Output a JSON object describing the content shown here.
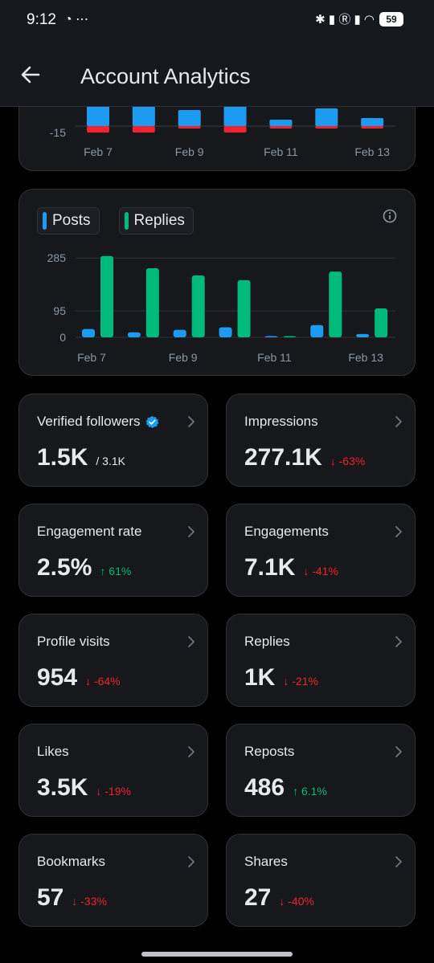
{
  "status_bar": {
    "time": "9:12",
    "left_icons": "◔ ⋯",
    "right_icons": "✱ ▮ Ⓡ ▮ ◠",
    "battery": "59"
  },
  "header": {
    "title": "Account Analytics",
    "back_icon": "arrow-left-icon"
  },
  "colors": {
    "posts": "#1d9bf0",
    "replies": "#00ba7c",
    "negative": "#f4212e",
    "card_bg": "#16181c",
    "border": "#2f3336"
  },
  "chart_data": [
    {
      "type": "bar",
      "description_key": "top-partial",
      "x": [
        "Feb 7",
        "Feb 8",
        "Feb 9",
        "Feb 10",
        "Feb 11",
        "Feb 12",
        "Feb 13"
      ],
      "x_tick_labels": [
        "Feb 7",
        "Feb 9",
        "Feb 11",
        "Feb 13"
      ],
      "y_tick_labels": [
        "-15"
      ],
      "series": [
        {
          "values": [
            30,
            30,
            20,
            30,
            8,
            22,
            10
          ]
        },
        {
          "values": [
            -8,
            -8,
            -3,
            -8,
            -3,
            -3,
            -3
          ]
        }
      ],
      "ylim": [
        -15,
        40
      ]
    },
    {
      "type": "bar",
      "x": [
        "Feb 7",
        "Feb 8",
        "Feb 9",
        "Feb 10",
        "Feb 11",
        "Feb 12",
        "Feb 13"
      ],
      "x_tick_labels": [
        "Feb 7",
        "Feb 9",
        "Feb 11",
        "Feb 13"
      ],
      "y_ticks": [
        0,
        95,
        285
      ],
      "y_tick_labels": [
        "0",
        "95",
        "285"
      ],
      "series": [
        {
          "name": "Posts",
          "values": [
            30,
            18,
            27,
            36,
            1,
            44,
            12
          ]
        },
        {
          "name": "Replies",
          "values": [
            292,
            248,
            222,
            205,
            1,
            236,
            104
          ]
        }
      ],
      "ylim": [
        0,
        300
      ],
      "grid": true,
      "legend": "top-left"
    }
  ],
  "metrics": [
    {
      "title": "Verified followers",
      "value": "1.5K",
      "sub": "/ 3.1K",
      "delta": "",
      "direction": "",
      "verified": true
    },
    {
      "title": "Impressions",
      "value": "277.1K",
      "sub": "",
      "delta": "↓ -63%",
      "direction": "down",
      "verified": false
    },
    {
      "title": "Engagement rate",
      "value": "2.5%",
      "sub": "",
      "delta": "↑ 61%",
      "direction": "up",
      "verified": false
    },
    {
      "title": "Engagements",
      "value": "7.1K",
      "sub": "",
      "delta": "↓ -41%",
      "direction": "down",
      "verified": false
    },
    {
      "title": "Profile visits",
      "value": "954",
      "sub": "",
      "delta": "↓ -64%",
      "direction": "down",
      "verified": false
    },
    {
      "title": "Replies",
      "value": "1K",
      "sub": "",
      "delta": "↓ -21%",
      "direction": "down",
      "verified": false
    },
    {
      "title": "Likes",
      "value": "3.5K",
      "sub": "",
      "delta": "↓ -19%",
      "direction": "down",
      "verified": false
    },
    {
      "title": "Reposts",
      "value": "486",
      "sub": "",
      "delta": "↑ 6.1%",
      "direction": "up",
      "verified": false
    },
    {
      "title": "Bookmarks",
      "value": "57",
      "sub": "",
      "delta": "↓ -33%",
      "direction": "down",
      "verified": false
    },
    {
      "title": "Shares",
      "value": "27",
      "sub": "",
      "delta": "↓ -40%",
      "direction": "down",
      "verified": false
    }
  ]
}
